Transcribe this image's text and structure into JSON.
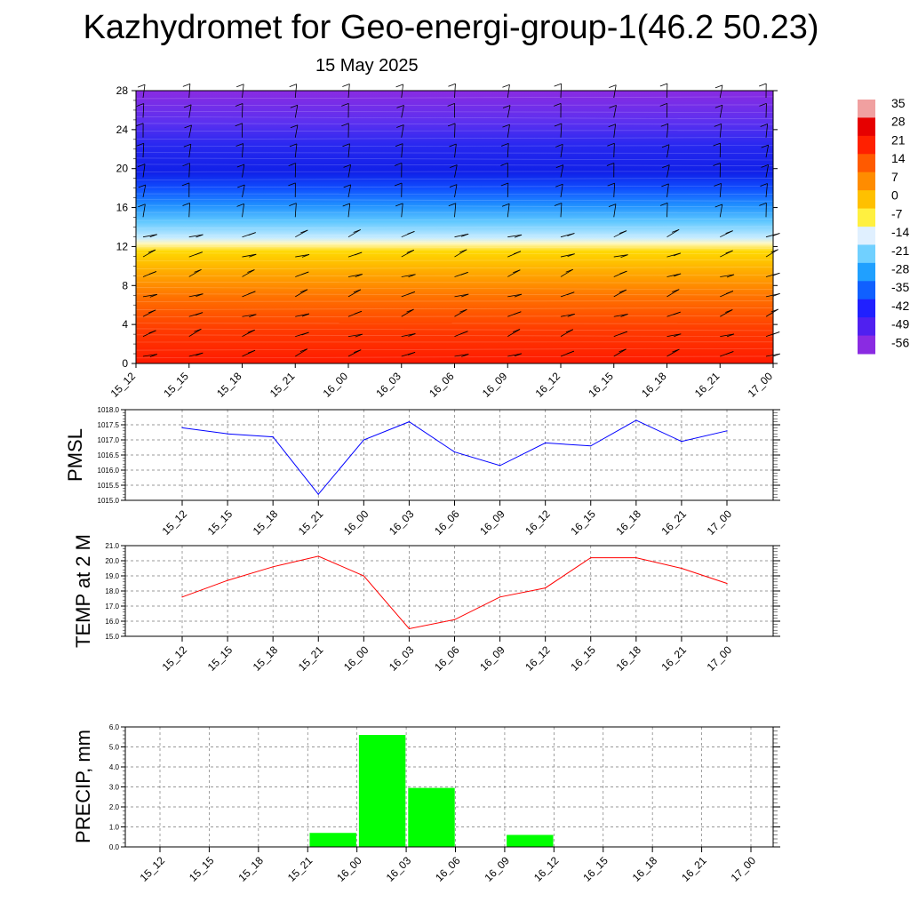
{
  "title": "Kazhydromet for Geo-energi-group-1(46.2 50.23)",
  "subtitle": "15 May 2025",
  "time_labels": [
    "15_12",
    "15_15",
    "15_18",
    "15_21",
    "16_00",
    "16_03",
    "16_06",
    "16_09",
    "16_12",
    "16_15",
    "16_18",
    "16_21",
    "17_00"
  ],
  "chart_data": [
    {
      "type": "heatmap",
      "description_levels": "vertical temperature cross-section with wind barbs",
      "x": [
        "15_12",
        "15_15",
        "15_18",
        "15_21",
        "16_00",
        "16_03",
        "16_06",
        "16_09",
        "16_12",
        "16_15",
        "16_18",
        "16_21",
        "17_00"
      ],
      "ylim": [
        0,
        28
      ],
      "yticks": [
        0,
        4,
        8,
        12,
        16,
        20,
        24,
        28
      ],
      "colorbar": {
        "labels": [
          "35",
          "28",
          "21",
          "14",
          "7",
          "0",
          "-7",
          "-14",
          "-21",
          "-28",
          "-35",
          "-42",
          "-49",
          "-56"
        ],
        "colors": [
          "#f0a0a0",
          "#e60000",
          "#ff2000",
          "#ff5a00",
          "#ff8c00",
          "#ffc000",
          "#fff040",
          "#e0f0ff",
          "#70d0ff",
          "#20a0ff",
          "#1060ff",
          "#2020ff",
          "#5020f0",
          "#8a2be2"
        ]
      }
    },
    {
      "type": "line",
      "ylabel": "PMSL",
      "x": [
        "15_12",
        "15_15",
        "15_18",
        "15_21",
        "16_00",
        "16_03",
        "16_06",
        "16_09",
        "16_12",
        "16_15",
        "16_18",
        "16_21",
        "17_00"
      ],
      "values": [
        1017.4,
        1017.2,
        1017.1,
        1015.2,
        1017.0,
        1017.6,
        1016.6,
        1016.15,
        1016.9,
        1016.8,
        1017.65,
        1016.95,
        1017.3
      ],
      "ylim": [
        1015.0,
        1018.0
      ],
      "yticks": [
        "1015.0",
        "1015.5",
        "1016.0",
        "1016.5",
        "1017.0",
        "1017.5",
        "1018.0"
      ],
      "color": "#0000ff"
    },
    {
      "type": "line",
      "ylabel": "TEMP at 2 M",
      "x": [
        "15_12",
        "15_15",
        "15_18",
        "15_21",
        "16_00",
        "16_03",
        "16_06",
        "16_09",
        "16_12",
        "16_15",
        "16_18",
        "16_21",
        "17_00"
      ],
      "values": [
        17.6,
        18.7,
        19.6,
        20.3,
        19.0,
        15.5,
        16.1,
        17.6,
        18.2,
        20.2,
        20.2,
        19.5,
        18.5
      ],
      "ylim": [
        15.0,
        21.0
      ],
      "yticks": [
        "15.0",
        "16.0",
        "17.0",
        "18.0",
        "19.0",
        "20.0",
        "21.0"
      ],
      "color": "#ff0000"
    },
    {
      "type": "bar",
      "ylabel": "PRECIP, mm",
      "x": [
        "15_12",
        "15_15",
        "15_18",
        "15_21",
        "16_00",
        "16_03",
        "16_06",
        "16_09",
        "16_12",
        "16_15",
        "16_18",
        "16_21",
        "17_00"
      ],
      "values": [
        0,
        0,
        0,
        0,
        0.7,
        5.6,
        2.95,
        0,
        0.6,
        0,
        0,
        0,
        0
      ],
      "ylim": [
        0.0,
        6.0
      ],
      "yticks": [
        "0.0",
        "1.0",
        "2.0",
        "3.0",
        "4.0",
        "5.0",
        "6.0"
      ],
      "color": "#00ff00"
    }
  ]
}
